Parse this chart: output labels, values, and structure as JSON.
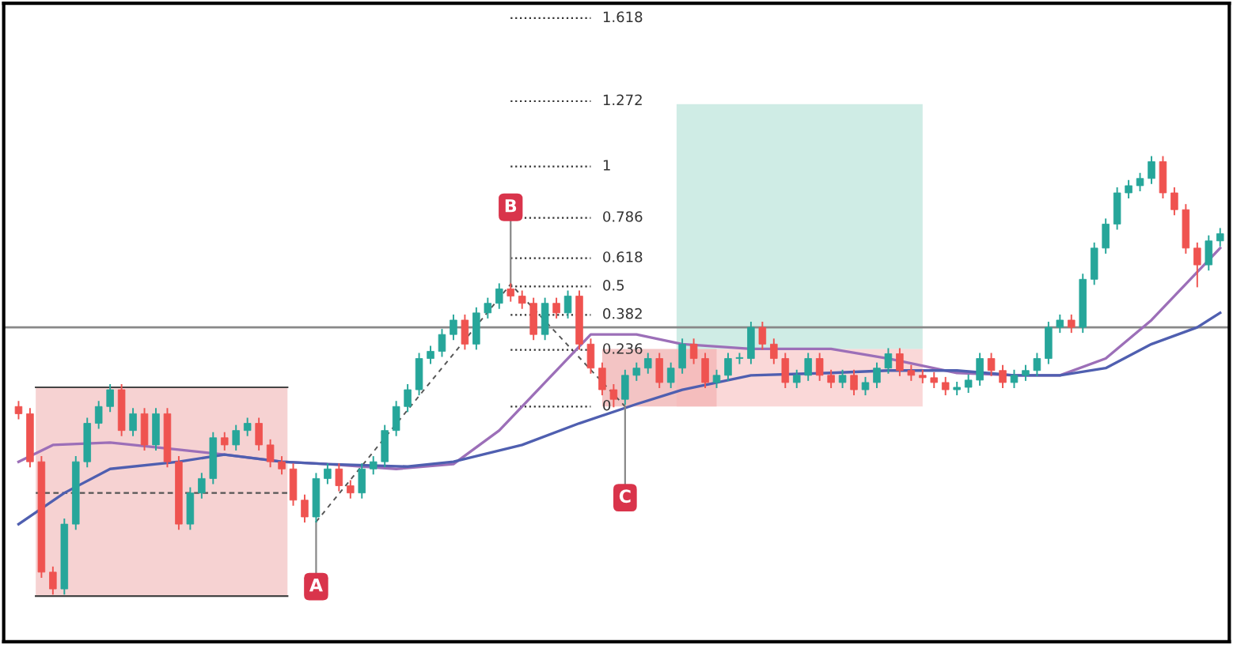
{
  "chart_data": {
    "type": "candlestick",
    "categories": [
      null,
      null,
      null,
      null,
      null,
      null,
      null,
      null,
      null,
      null,
      null,
      null,
      null,
      null,
      null,
      null,
      null,
      null,
      null,
      null,
      null,
      null,
      null,
      null,
      null,
      null,
      null,
      null,
      null,
      null,
      null,
      null,
      null,
      null,
      null,
      null,
      null,
      null,
      null,
      null,
      null,
      null,
      null,
      null,
      null,
      null,
      null,
      null,
      null,
      null,
      null,
      null,
      null,
      null,
      null,
      null,
      null,
      null,
      null,
      null,
      null,
      null,
      null,
      null,
      null,
      null,
      null,
      null,
      null,
      null,
      null,
      null,
      null,
      null,
      null,
      null,
      null,
      null,
      null,
      null,
      null,
      null,
      null,
      null,
      null,
      null,
      null,
      null,
      null,
      null,
      null,
      null,
      null,
      null,
      null,
      null,
      null,
      null,
      null,
      null,
      null,
      null,
      null,
      null,
      null,
      null
    ],
    "ohlc": [
      [
        0.0,
        0.02,
        -0.05,
        -0.03
      ],
      [
        -0.03,
        -0.01,
        -0.25,
        -0.23
      ],
      [
        -0.23,
        -0.21,
        -0.71,
        -0.69
      ],
      [
        -0.69,
        -0.67,
        -0.78,
        -0.76
      ],
      [
        -0.76,
        -0.47,
        -0.78,
        -0.49
      ],
      [
        -0.49,
        -0.21,
        -0.51,
        -0.23
      ],
      [
        -0.23,
        -0.05,
        -0.25,
        -0.07
      ],
      [
        -0.07,
        0.02,
        -0.09,
        0
      ],
      [
        0,
        0.09,
        -0.02,
        0.07
      ],
      [
        0.07,
        0.09,
        -0.12,
        -0.1
      ],
      [
        -0.1,
        -0.01,
        -0.12,
        -0.03
      ],
      [
        -0.03,
        -0.01,
        -0.18,
        -0.16
      ],
      [
        -0.16,
        -0.01,
        -0.18,
        -0.03
      ],
      [
        -0.03,
        -0.01,
        -0.25,
        -0.23
      ],
      [
        -0.23,
        -0.21,
        -0.51,
        -0.49
      ],
      [
        -0.49,
        -0.34,
        -0.51,
        -0.36
      ],
      [
        -0.36,
        -0.28,
        -0.38,
        -0.3
      ],
      [
        -0.3,
        -0.11,
        -0.32,
        -0.13
      ],
      [
        -0.13,
        -0.11,
        -0.18,
        -0.16
      ],
      [
        -0.16,
        -0.08,
        -0.18,
        -0.1
      ],
      [
        -0.1,
        -0.05,
        -0.12,
        -0.07
      ],
      [
        -0.07,
        -0.05,
        -0.18,
        -0.16
      ],
      [
        -0.16,
        -0.14,
        -0.25,
        -0.23
      ],
      [
        -0.23,
        -0.21,
        -0.28,
        -0.26
      ],
      [
        -0.26,
        -0.24,
        -0.41,
        -0.39
      ],
      [
        -0.39,
        -0.37,
        -0.48,
        -0.46
      ],
      [
        -0.46,
        -0.28,
        -0.48,
        -0.3
      ],
      [
        -0.3,
        -0.24,
        -0.32,
        -0.26
      ],
      [
        -0.26,
        -0.24,
        -0.35,
        -0.33
      ],
      [
        -0.33,
        -0.31,
        -0.38,
        -0.36
      ],
      [
        -0.36,
        -0.24,
        -0.38,
        -0.26
      ],
      [
        -0.26,
        -0.21,
        -0.28,
        -0.23
      ],
      [
        -0.23,
        -0.08,
        -0.25,
        -0.1
      ],
      [
        -0.1,
        0.02,
        -0.12,
        0
      ],
      [
        0,
        0.09,
        -0.02,
        0.07
      ],
      [
        0.07,
        0.22,
        0.05,
        0.2
      ],
      [
        0.2,
        0.25,
        0.18,
        0.23
      ],
      [
        0.23,
        0.32,
        0.21,
        0.3
      ],
      [
        0.3,
        0.38,
        0.28,
        0.36
      ],
      [
        0.36,
        0.38,
        0.24,
        0.26
      ],
      [
        0.26,
        0.41,
        0.24,
        0.39
      ],
      [
        0.39,
        0.45,
        0.37,
        0.43
      ],
      [
        0.43,
        0.51,
        0.41,
        0.49
      ],
      [
        0.49,
        0.51,
        0.44,
        0.46
      ],
      [
        0.46,
        0.48,
        0.41,
        0.43
      ],
      [
        0.43,
        0.45,
        0.28,
        0.3
      ],
      [
        0.3,
        0.45,
        0.28,
        0.43
      ],
      [
        0.43,
        0.45,
        0.37,
        0.39
      ],
      [
        0.39,
        0.48,
        0.37,
        0.46
      ],
      [
        0.46,
        0.48,
        0.24,
        0.26
      ],
      [
        0.26,
        0.28,
        0.14,
        0.16
      ],
      [
        0.16,
        0.18,
        0.05,
        0.07
      ],
      [
        0.07,
        0.09,
        0,
        0.03
      ],
      [
        0.03,
        0.15,
        0.01,
        0.13
      ],
      [
        0.13,
        0.18,
        0.11,
        0.16
      ],
      [
        0.16,
        0.22,
        0.14,
        0.2
      ],
      [
        0.2,
        0.22,
        0.08,
        0.1
      ],
      [
        0.1,
        0.18,
        0.08,
        0.16
      ],
      [
        0.16,
        0.28,
        0.14,
        0.26
      ],
      [
        0.26,
        0.28,
        0.18,
        0.2
      ],
      [
        0.2,
        0.22,
        0.08,
        0.1
      ],
      [
        0.1,
        0.15,
        0.08,
        0.13
      ],
      [
        0.13,
        0.22,
        0.11,
        0.2
      ],
      [
        0.2,
        0.22,
        0.18,
        0.2
      ],
      [
        0.2,
        0.35,
        0.18,
        0.33
      ],
      [
        0.33,
        0.35,
        0.24,
        0.26
      ],
      [
        0.26,
        0.28,
        0.18,
        0.2
      ],
      [
        0.2,
        0.22,
        0.08,
        0.1
      ],
      [
        0.1,
        0.15,
        0.08,
        0.13
      ],
      [
        0.13,
        0.22,
        0.11,
        0.2
      ],
      [
        0.2,
        0.22,
        0.11,
        0.13
      ],
      [
        0.13,
        0.15,
        0.08,
        0.1
      ],
      [
        0.1,
        0.15,
        0.08,
        0.13
      ],
      [
        0.13,
        0.15,
        0.05,
        0.07
      ],
      [
        0.07,
        0.12,
        0.05,
        0.1
      ],
      [
        0.1,
        0.18,
        0.08,
        0.16
      ],
      [
        0.16,
        0.24,
        0.14,
        0.22
      ],
      [
        0.22,
        0.24,
        0.13,
        0.15
      ],
      [
        0.15,
        0.17,
        0.11,
        0.13
      ],
      [
        0.13,
        0.15,
        0.1,
        0.12
      ],
      [
        0.12,
        0.14,
        0.08,
        0.1
      ],
      [
        0.1,
        0.12,
        0.05,
        0.07
      ],
      [
        0.07,
        0.1,
        0.05,
        0.08
      ],
      [
        0.08,
        0.13,
        0.06,
        0.11
      ],
      [
        0.11,
        0.22,
        0.09,
        0.2
      ],
      [
        0.2,
        0.22,
        0.13,
        0.15
      ],
      [
        0.15,
        0.17,
        0.08,
        0.1
      ],
      [
        0.1,
        0.15,
        0.08,
        0.13
      ],
      [
        0.13,
        0.17,
        0.11,
        0.15
      ],
      [
        0.15,
        0.22,
        0.13,
        0.2
      ],
      [
        0.2,
        0.35,
        0.18,
        0.33
      ],
      [
        0.33,
        0.38,
        0.31,
        0.36
      ],
      [
        0.36,
        0.38,
        0.31,
        0.33
      ],
      [
        0.33,
        0.55,
        0.31,
        0.53
      ],
      [
        0.53,
        0.68,
        0.51,
        0.66
      ],
      [
        0.66,
        0.78,
        0.64,
        0.76
      ],
      [
        0.76,
        0.91,
        0.74,
        0.89
      ],
      [
        0.89,
        0.94,
        0.87,
        0.92
      ],
      [
        0.92,
        0.97,
        0.9,
        0.95
      ],
      [
        0.95,
        1.04,
        0.93,
        1.02
      ],
      [
        1.02,
        1.04,
        0.87,
        0.89
      ],
      [
        0.89,
        0.91,
        0.8,
        0.82
      ],
      [
        0.82,
        0.84,
        0.64,
        0.66
      ],
      [
        0.66,
        0.68,
        0.5,
        0.59
      ],
      [
        0.59,
        0.71,
        0.57,
        0.69
      ],
      [
        0.69,
        0.74,
        0.67,
        0.72
      ]
    ],
    "series": [
      {
        "type": "line",
        "color": "#9c6fb8",
        "values": [
          -0.23,
          null,
          null,
          -0.16,
          null,
          null,
          null,
          null,
          -0.15,
          null,
          null,
          null,
          null,
          null,
          -0.18,
          null,
          null,
          null,
          -0.2,
          null,
          null,
          null,
          null,
          -0.23,
          null,
          null,
          null,
          -0.24,
          null,
          null,
          null,
          null,
          null,
          -0.26,
          null,
          null,
          null,
          null,
          -0.24,
          null,
          null,
          null,
          -0.1,
          null,
          null,
          null,
          0.1,
          null,
          null,
          null,
          0.3,
          null,
          null,
          null,
          0.3,
          null,
          null,
          null,
          0.26,
          null,
          null,
          null,
          null,
          null,
          0.24,
          null,
          null,
          null,
          null,
          null,
          null,
          0.24,
          null,
          null,
          null,
          null,
          0.2,
          null,
          null,
          null,
          null,
          null,
          0.14,
          null,
          null,
          null,
          null,
          0.13,
          null,
          null,
          null,
          0.13,
          null,
          null,
          null,
          0.2,
          null,
          null,
          null,
          0.36,
          null,
          null,
          null,
          0.56,
          null,
          0.66
        ]
      },
      {
        "type": "line",
        "color": "#4f5fb0",
        "values": [
          -0.49,
          null,
          null,
          null,
          -0.36,
          null,
          null,
          null,
          -0.26,
          null,
          null,
          null,
          null,
          null,
          -0.23,
          null,
          null,
          null,
          -0.2,
          null,
          null,
          null,
          null,
          -0.23,
          null,
          null,
          null,
          -0.24,
          null,
          null,
          null,
          null,
          null,
          null,
          -0.25,
          null,
          null,
          null,
          -0.23,
          null,
          null,
          null,
          null,
          null,
          -0.16,
          null,
          null,
          null,
          null,
          -0.07,
          null,
          null,
          null,
          null,
          0.01,
          null,
          null,
          null,
          0.07,
          null,
          null,
          null,
          null,
          null,
          0.13,
          null,
          null,
          null,
          null,
          null,
          null,
          0.14,
          null,
          null,
          null,
          null,
          0.15,
          null,
          null,
          null,
          null,
          null,
          0.15,
          null,
          null,
          null,
          null,
          0.13,
          null,
          null,
          null,
          0.13,
          null,
          null,
          null,
          0.16,
          null,
          null,
          null,
          0.26,
          null,
          null,
          null,
          0.33,
          null,
          0.39
        ]
      }
    ],
    "ylim": [
      -0.98,
      1.68
    ],
    "ref_lines": [
      {
        "axis": "y",
        "value": 0,
        "label": "0",
        "line_style": "dotted",
        "color": "#333333"
      },
      {
        "axis": "y",
        "value": 0.236,
        "label": "0.236",
        "line_style": "dotted",
        "color": "#333333"
      },
      {
        "axis": "y",
        "value": 0.382,
        "label": "0.382",
        "line_style": "dotted",
        "color": "#333333"
      },
      {
        "axis": "y",
        "value": 0.5,
        "label": "0.5",
        "line_style": "dotted",
        "color": "#333333"
      },
      {
        "axis": "y",
        "value": 0.618,
        "label": "0.618",
        "line_style": "dotted",
        "color": "#333333"
      },
      {
        "axis": "y",
        "value": 0.786,
        "label": "0.786",
        "line_style": "dotted",
        "color": "#333333"
      },
      {
        "axis": "y",
        "value": 1,
        "label": "1",
        "line_style": "dotted",
        "color": "#333333"
      },
      {
        "axis": "y",
        "value": 1.272,
        "label": "1.272",
        "line_style": "dotted",
        "color": "#333333"
      },
      {
        "axis": "y",
        "value": 1.618,
        "label": "1.618",
        "line_style": "dotted",
        "color": "#333333"
      },
      {
        "axis": "y",
        "value": 0.33,
        "line_style": "solid",
        "color": "#888888"
      }
    ],
    "annotations": [
      "A",
      "B",
      "C"
    ],
    "tick_labels": false,
    "legend": false
  }
}
